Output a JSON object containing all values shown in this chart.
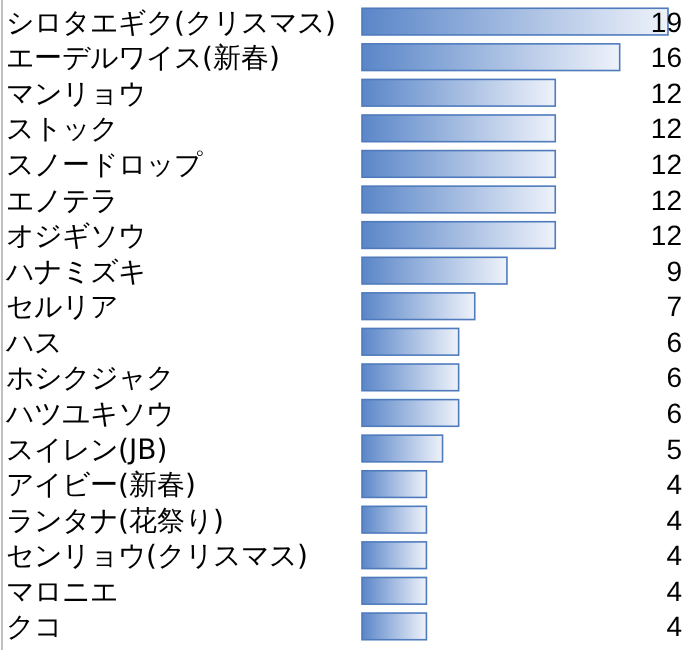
{
  "chart_data": {
    "type": "bar",
    "orientation": "horizontal",
    "data_labels": true,
    "color": "#5a86c8",
    "categories": [
      "シロタエギク(クリスマス)",
      "エーデルワイス(新春)",
      "マンリョウ",
      "ストック",
      "スノードロップ",
      "エノテラ",
      "オジギソウ",
      "ハナミズキ",
      "セルリア",
      "ハス",
      "ホシクジャク",
      "ハツユキソウ",
      "スイレン(JB)",
      "アイビー(新春)",
      "ランタナ(花祭り)",
      "センリョウ(クリスマス)",
      "マロニエ",
      "クコ"
    ],
    "values": [
      19,
      16,
      12,
      12,
      12,
      12,
      12,
      9,
      7,
      6,
      6,
      6,
      5,
      4,
      4,
      4,
      4,
      4
    ]
  }
}
